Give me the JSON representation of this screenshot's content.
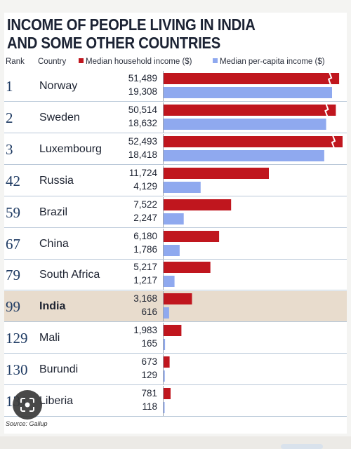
{
  "title_line1": "INCOME OF PEOPLE LIVING IN INDIA",
  "title_line2": "AND SOME OTHER COUNTRIES",
  "header": {
    "rank": "Rank",
    "country": "Country",
    "legend_household": "Median household income ($)",
    "legend_percapita": "Median per-capita income ($)"
  },
  "colors": {
    "household": "#c0161e",
    "percapita": "#8fa9ef",
    "highlight_row": "#e8dccd"
  },
  "source": "Source: Gallup",
  "lens_icon": "google-lens-icon",
  "chart_data": {
    "type": "bar",
    "orientation": "horizontal",
    "title": "INCOME OF PEOPLE LIVING IN INDIA AND SOME OTHER COUNTRIES",
    "categories": [
      "Norway",
      "Sweden",
      "Luxembourg",
      "Russia",
      "Brazil",
      "China",
      "South Africa",
      "India",
      "Mali",
      "Burundi",
      "Liberia"
    ],
    "ranks": [
      "1",
      "2",
      "3",
      "42",
      "59",
      "67",
      "79",
      "99",
      "129",
      "130",
      "131"
    ],
    "highlight": "India",
    "series": [
      {
        "name": "Median household income ($)",
        "values": [
          51489,
          50514,
          52493,
          11724,
          7522,
          6180,
          5217,
          3168,
          1983,
          673,
          781
        ],
        "labels": [
          "51,489",
          "50,514",
          "52,493",
          "11,724",
          "7,522",
          "6,180",
          "5,217",
          "3,168",
          "1,983",
          "673",
          "781"
        ]
      },
      {
        "name": "Median per-capita income ($)",
        "values": [
          19308,
          18632,
          18418,
          4129,
          2247,
          1786,
          1217,
          616,
          165,
          129,
          118
        ],
        "labels": [
          "19,308",
          "18,632",
          "18,418",
          "4,129",
          "2,247",
          "1,786",
          "1,217",
          "616",
          "165",
          "129",
          "118"
        ]
      }
    ],
    "scale_break": [
      "Norway",
      "Sweden",
      "Luxembourg"
    ],
    "grid": false,
    "legend": "top"
  }
}
